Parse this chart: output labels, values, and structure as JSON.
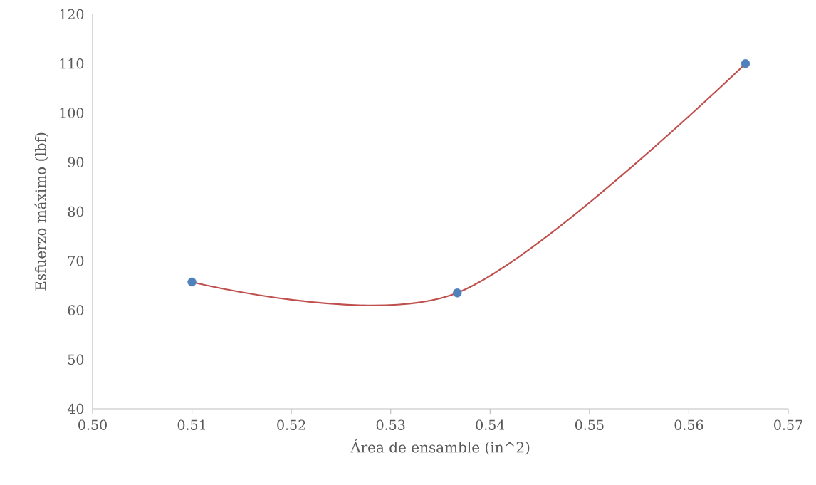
{
  "chart_data": {
    "type": "scatter",
    "xlabel": "Área de ensamble (in^2)",
    "ylabel": "Esfuerzo máximo (lbf)",
    "x": [
      0.51,
      0.5367,
      0.5657
    ],
    "series": [
      {
        "type": "line",
        "color": "#c0504d",
        "values": [
          65.7,
          63.5,
          110
        ],
        "marker": "none",
        "line_style": "solid"
      },
      {
        "color": "#4f81bd",
        "values": [
          65.7,
          63.5,
          110
        ],
        "marker": "circle"
      }
    ],
    "xlim": [
      0.5,
      0.57
    ],
    "xticks": [
      {
        "value": 0.5,
        "label": "0.50"
      },
      {
        "value": 0.51,
        "label": "0.51"
      },
      {
        "value": 0.52,
        "label": "0.52"
      },
      {
        "value": 0.53,
        "label": "0.53"
      },
      {
        "value": 0.54,
        "label": "0.54"
      },
      {
        "value": 0.55,
        "label": "0.55"
      },
      {
        "value": 0.56,
        "label": "0.56"
      },
      {
        "value": 0.57,
        "label": "0.57"
      }
    ],
    "ylim": [
      40,
      120
    ],
    "yticks": [
      40,
      50,
      60,
      70,
      80,
      90,
      100,
      110,
      120
    ]
  }
}
